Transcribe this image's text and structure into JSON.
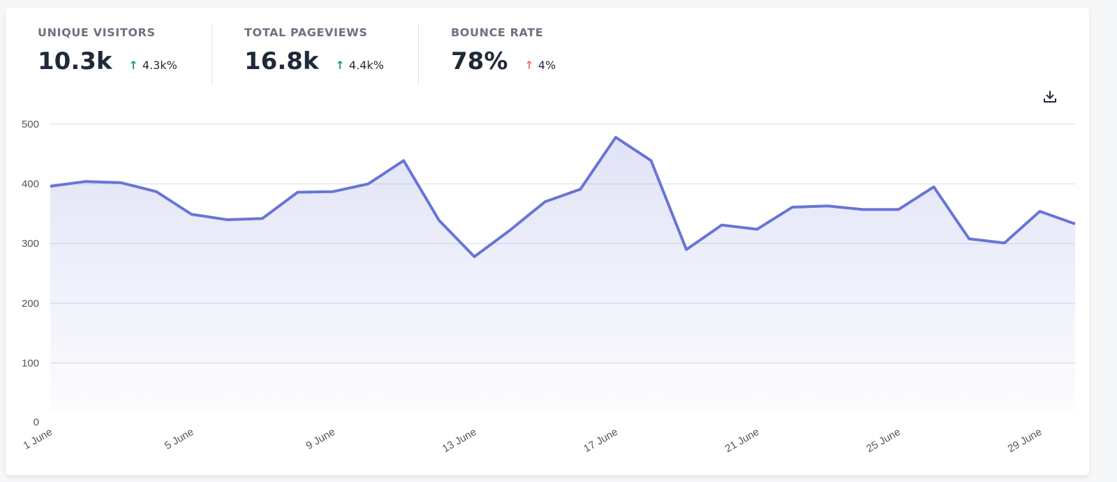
{
  "stats": [
    {
      "label": "UNIQUE VISITORS",
      "value": "10.3k",
      "delta": "4.3k%",
      "direction": "up",
      "color": "#10a36b"
    },
    {
      "label": "TOTAL PAGEVIEWS",
      "value": "16.8k",
      "delta": "4.4k%",
      "direction": "up",
      "color": "#10a36b"
    },
    {
      "label": "BOUNCE RATE",
      "value": "78%",
      "delta": "4%",
      "direction": "up",
      "color": "#f87171"
    }
  ],
  "toolbar": {
    "download_icon": "download-icon"
  },
  "chart_data": {
    "type": "area",
    "x": [
      "1 June",
      "2 June",
      "3 June",
      "4 June",
      "5 June",
      "6 June",
      "7 June",
      "8 June",
      "9 June",
      "10 June",
      "11 June",
      "12 June",
      "13 June",
      "14 June",
      "15 June",
      "16 June",
      "17 June",
      "18 June",
      "19 June",
      "20 June",
      "21 June",
      "22 June",
      "23 June",
      "24 June",
      "25 June",
      "26 June",
      "27 June",
      "28 June",
      "29 June",
      "30 June"
    ],
    "values": [
      396,
      404,
      402,
      387,
      349,
      340,
      342,
      386,
      387,
      400,
      439,
      339,
      278,
      322,
      370,
      391,
      478,
      439,
      290,
      331,
      324,
      361,
      363,
      357,
      357,
      395,
      308,
      301,
      354,
      333
    ],
    "x_tick_labels": [
      "1 June",
      "5 June",
      "9 June",
      "13 June",
      "17 June",
      "21 June",
      "25 June",
      "29 June"
    ],
    "y_ticks": [
      "0",
      "100",
      "200",
      "300",
      "400",
      "500"
    ],
    "ylim": [
      0,
      500
    ],
    "grid": true,
    "line_color": "#6875d5"
  }
}
